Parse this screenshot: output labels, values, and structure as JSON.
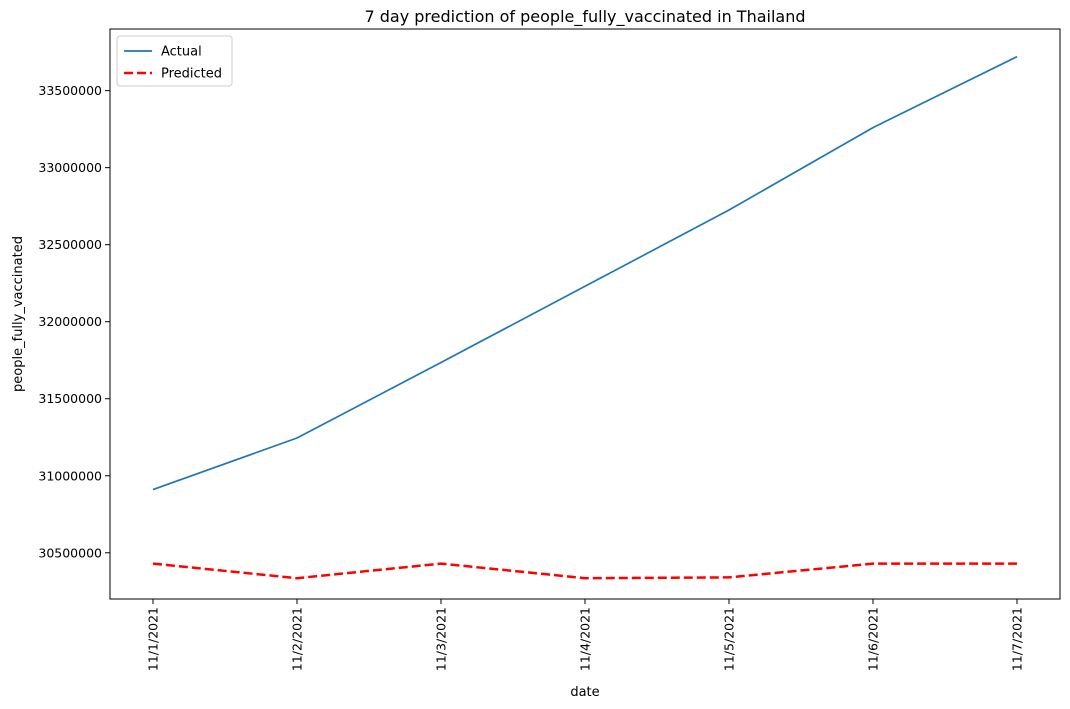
{
  "chart_data": {
    "type": "line",
    "title": "7 day prediction of people_fully_vaccinated in Thailand",
    "xlabel": "date",
    "ylabel": "people_fully_vaccinated",
    "categories": [
      "11/1/2021",
      "11/2/2021",
      "11/3/2021",
      "11/4/2021",
      "11/5/2021",
      "11/6/2021",
      "11/7/2021"
    ],
    "yticks": [
      "30500000",
      "31000000",
      "31500000",
      "32000000",
      "32500000",
      "33000000",
      "33500000"
    ],
    "ylim": [
      30200000,
      33900000
    ],
    "grid": false,
    "legend_position": "top-left",
    "series": [
      {
        "name": "Actual",
        "color": "#1f77b4",
        "dashed": false,
        "values": [
          30910000,
          31245000,
          31735000,
          32230000,
          32725000,
          33260000,
          33720000
        ]
      },
      {
        "name": "Predicted",
        "color": "#ff0000",
        "dashed": true,
        "values": [
          30430000,
          30335000,
          30430000,
          30335000,
          30340000,
          30430000,
          30430000
        ]
      }
    ]
  }
}
